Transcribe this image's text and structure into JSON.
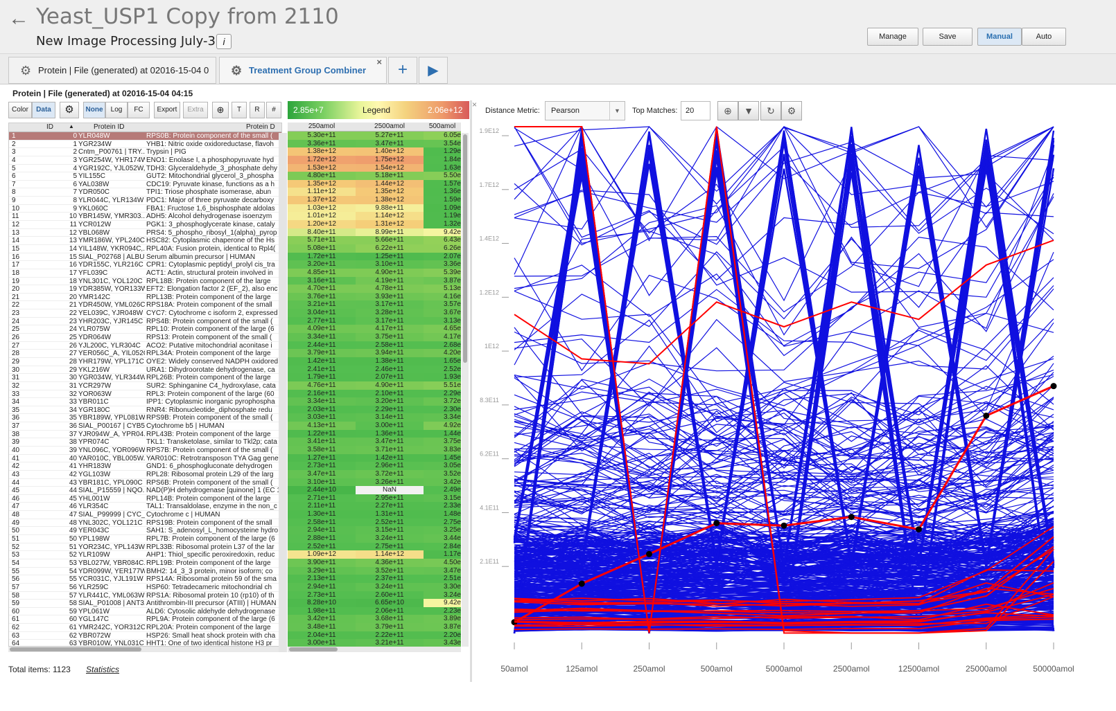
{
  "header": {
    "title": "Yeast_USP1 Copy from 2110",
    "subtitle": "New Image Processing July-30",
    "info": "i",
    "buttons": [
      "Manage",
      "Save",
      "Manual",
      "Auto"
    ]
  },
  "tabs": [
    {
      "label": "Protein | File (generated) at 02016-15-04 0"
    },
    {
      "label": "Treatment Group Combiner",
      "close": "×"
    }
  ],
  "panel_title": "Protein | File (generated) at 02016-15-04 04:15",
  "toolbar": {
    "color": "Color",
    "data": "Data",
    "none": "None",
    "log": "Log",
    "fc": "FC",
    "export": "Export",
    "extra": "Extra",
    "t": "T",
    "r": "R",
    "hash": "#"
  },
  "legend": {
    "min": "2.85e+7",
    "label": "Legend",
    "max": "2.06e+12",
    "colors": {
      "low": "#2ca53c",
      "mid": "#fff8b0",
      "high": "#d85a5a"
    }
  },
  "table": {
    "headers": [
      "ID",
      "Protein ID",
      "Protein D"
    ],
    "sort_arrow": "▲",
    "rows": [
      [
        "1",
        "0",
        "YLR048W",
        "RPS0B: Protein component of the small ("
      ],
      [
        "2",
        "1",
        "YGR234W",
        "YHB1: Nitric oxide oxidoreductase, flavoh"
      ],
      [
        "3",
        "2",
        "Cntm_P00761 | TRY...",
        "Trypsin | PIG"
      ],
      [
        "4",
        "3",
        "YGR254W, YHR174W",
        "ENO1: Enolase I, a phosphopyruvate hyd"
      ],
      [
        "5",
        "4",
        "YGR192C, YJL052W,...",
        "TDH3: Glyceraldehyde_3_phosphate dehy"
      ],
      [
        "6",
        "5",
        "YIL155C",
        "GUT2: Mitochondrial glycerol_3_phospha"
      ],
      [
        "7",
        "6",
        "YAL038W",
        "CDC19: Pyruvate kinase, functions as a h"
      ],
      [
        "8",
        "7",
        "YDR050C",
        "TPI1: Triose phosphate isomerase, abun"
      ],
      [
        "9",
        "8",
        "YLR044C, YLR134W",
        "PDC1: Major of three pyruvate decarboxy"
      ],
      [
        "10",
        "9",
        "YKL060C",
        "FBA1: Fructose 1,6_bisphosphate aldolas"
      ],
      [
        "11",
        "10",
        "YBR145W, YMR303...",
        "ADH5: Alcohol dehydrogenase isoenzym"
      ],
      [
        "12",
        "11",
        "YCR012W",
        "PGK1: 3_phosphoglycerate kinase, cataly"
      ],
      [
        "13",
        "12",
        "YBL068W",
        "PRS4: 5_phospho_ribosyl_1(alpha)_pyrop"
      ],
      [
        "14",
        "13",
        "YMR186W, YPL240C",
        "HSC82: Cytoplasmic chaperone of the Hs"
      ],
      [
        "15",
        "14",
        "YIL148W, YKR094C,...",
        "RPL40A: Fusion protein, identical to Rpl4("
      ],
      [
        "16",
        "15",
        "SIAL_P02768 | ALBU...",
        "Serum albumin precursor | HUMAN"
      ],
      [
        "17",
        "16",
        "YDR155C, YLR216C",
        "CPR1: Cytoplasmic peptidyl_prolyl cis_tra"
      ],
      [
        "18",
        "17",
        "YFL039C",
        "ACT1: Actin, structural protein involved in"
      ],
      [
        "19",
        "18",
        "YNL301C, YOL120C",
        "RPL18B: Protein component of the large"
      ],
      [
        "20",
        "19",
        "YDR385W, YOR133W",
        "EFT2: Elongation factor 2 (EF_2), also enc"
      ],
      [
        "21",
        "20",
        "YMR142C",
        "RPL13B: Protein component of the large"
      ],
      [
        "22",
        "21",
        "YDR450W, YML026C",
        "RPS18A: Protein component of the small"
      ],
      [
        "23",
        "22",
        "YEL039C, YJR048W",
        "CYC7: Cytochrome c isoform 2, expressed"
      ],
      [
        "24",
        "23",
        "YHR203C, YJR145C",
        "RPS4B: Protein component of the small ("
      ],
      [
        "25",
        "24",
        "YLR075W",
        "RPL10: Protein component of the large (6"
      ],
      [
        "26",
        "25",
        "YDR064W",
        "RPS13: Protein component of the small ("
      ],
      [
        "27",
        "26",
        "YJL200C, YLR304C",
        "ACO2: Putative mitochondrial aconitase i"
      ],
      [
        "28",
        "27",
        "YER056C_A, YIL052C",
        "RPL34A: Protein component of the large"
      ],
      [
        "29",
        "28",
        "YHR179W, YPL171C",
        "OYE2: Widely conserved NADPH oxidored"
      ],
      [
        "30",
        "29",
        "YKL216W",
        "URA1: Dihydroorotate dehydrogenase, ca"
      ],
      [
        "31",
        "30",
        "YGR034W, YLR344W",
        "RPL26B: Protein component of the large"
      ],
      [
        "32",
        "31",
        "YCR297W",
        "SUR2: Sphinganine C4_hydroxylase, cata"
      ],
      [
        "33",
        "32",
        "YOR063W",
        "RPL3: Protein component of the large (60"
      ],
      [
        "34",
        "33",
        "YBR011C",
        "IPP1: Cytoplasmic inorganic pyrophospha"
      ],
      [
        "35",
        "34",
        "YGR180C",
        "RNR4: Ribonucleotide_diphosphate redu"
      ],
      [
        "36",
        "35",
        "YBR189W, YPL081W",
        "RPS9B: Protein component of the small ("
      ],
      [
        "37",
        "36",
        "SIAL_P00167 | CYB5...",
        "Cytochrome b5 | HUMAN"
      ],
      [
        "38",
        "37",
        "YJR094W_A, YPR04...",
        "RPL43B: Protein component of the large"
      ],
      [
        "39",
        "38",
        "YPR074C",
        "TKL1: Transketolase, similar to Tkl2p; cata"
      ],
      [
        "40",
        "39",
        "YNL096C, YOR096W",
        "RPS7B: Protein component of the small ("
      ],
      [
        "41",
        "40",
        "YAR010C, YBL005W...",
        "YAR010C: Retrotransposon TYA Gag gene"
      ],
      [
        "42",
        "41",
        "YHR183W",
        "GND1: 6_phosphogluconate dehydrogen"
      ],
      [
        "43",
        "42",
        "YGL103W",
        "RPL28: Ribosomal protein L29 of the larg"
      ],
      [
        "44",
        "43",
        "YBR181C, YPL090C",
        "RPS6B: Protein component of the small ("
      ],
      [
        "45",
        "44",
        "SIAL_P15559 | NQO...",
        "NAD(P)H dehydrogenase [quinone] 1 (EC 1"
      ],
      [
        "46",
        "45",
        "YHL001W",
        "RPL14B: Protein component of the large"
      ],
      [
        "47",
        "46",
        "YLR354C",
        "TAL1: Transaldolase, enzyme in the non_c"
      ],
      [
        "48",
        "47",
        "SIAL_P99999 | CYC_...",
        "Cytochrome c | HUMAN"
      ],
      [
        "49",
        "48",
        "YNL302C, YOL121C",
        "RPS19B: Protein component of the small"
      ],
      [
        "50",
        "49",
        "YER043C",
        "SAH1: S_adenosyl_L_homocysteine hydro"
      ],
      [
        "51",
        "50",
        "YPL198W",
        "RPL7B: Protein component of the large (6"
      ],
      [
        "52",
        "51",
        "YOR234C, YPL143W",
        "RPL33B: Ribosomal protein L37 of the lar"
      ],
      [
        "53",
        "52",
        "YLR109W",
        "AHP1: Thiol_specific peroxiredoxin, reduc"
      ],
      [
        "54",
        "53",
        "YBL027W, YBR084C...",
        "RPL19B: Protein component of the large"
      ],
      [
        "55",
        "54",
        "YDR099W, YER177W",
        "BMH2: 14_3_3 protein, minor isoform; co"
      ],
      [
        "56",
        "55",
        "YCR031C, YJL191W",
        "RPS14A: Ribosomal protein 59 of the sma"
      ],
      [
        "57",
        "56",
        "YLR259C",
        "HSP60: Tetradecameric mitochondrial ch"
      ],
      [
        "58",
        "57",
        "YLR441C, YML063W",
        "RPS1A: Ribosomal protein 10 (rp10) of th"
      ],
      [
        "59",
        "58",
        "SIAL_P01008 | ANT3...",
        "Antithrombin-III precursor (ATIII) | HUMAN"
      ],
      [
        "60",
        "59",
        "YPL061W",
        "ALD6: Cytosolic aldehyde dehydrogenase"
      ],
      [
        "61",
        "60",
        "YGL147C",
        "RPL9A: Protein component of the large (6"
      ],
      [
        "62",
        "61",
        "YMR242C, YOR312C",
        "RPL20A: Protein component of the large"
      ],
      [
        "63",
        "62",
        "YBR072W",
        "HSP26: Small heat shock protein with cha"
      ],
      [
        "64",
        "63",
        "YBR010W, YNL031C",
        "HHT1: One of two identical histone H3 pr"
      ]
    ]
  },
  "heatmap": {
    "headers": [
      "250amol",
      "2500amol",
      "500amol"
    ],
    "rows": [
      [
        "5.30e+11",
        "5.27e+11",
        "6.05e"
      ],
      [
        "3.36e+11",
        "3.47e+11",
        "3.54e"
      ],
      [
        "1.38e+12",
        "1.40e+12",
        "1.29e"
      ],
      [
        "1.72e+12",
        "1.75e+12",
        "1.84e"
      ],
      [
        "1.53e+12",
        "1.54e+12",
        "1.63e"
      ],
      [
        "4.80e+11",
        "5.18e+11",
        "5.50e"
      ],
      [
        "1.35e+12",
        "1.44e+12",
        "1.57e"
      ],
      [
        "1.11e+12",
        "1.35e+12",
        "1.36e"
      ],
      [
        "1.37e+12",
        "1.38e+12",
        "1.59e"
      ],
      [
        "1.03e+12",
        "9.88e+11",
        "1.09e"
      ],
      [
        "1.01e+12",
        "1.14e+12",
        "1.19e"
      ],
      [
        "1.20e+12",
        "1.31e+12",
        "1.32e"
      ],
      [
        "8.40e+11",
        "8.99e+11",
        "9.42e"
      ],
      [
        "5.71e+11",
        "5.66e+11",
        "6.43e"
      ],
      [
        "5.08e+11",
        "6.22e+11",
        "6.26e"
      ],
      [
        "1.72e+11",
        "1.25e+11",
        "2.07e"
      ],
      [
        "3.20e+11",
        "3.10e+11",
        "3.36e"
      ],
      [
        "4.85e+11",
        "4.90e+11",
        "5.39e"
      ],
      [
        "3.16e+11",
        "4.19e+11",
        "3.87e"
      ],
      [
        "4.70e+11",
        "4.78e+11",
        "5.13e"
      ],
      [
        "3.76e+11",
        "3.93e+11",
        "4.16e"
      ],
      [
        "3.21e+11",
        "3.17e+11",
        "3.57e"
      ],
      [
        "3.04e+11",
        "3.28e+11",
        "3.67e"
      ],
      [
        "2.77e+11",
        "3.17e+11",
        "3.13e"
      ],
      [
        "4.09e+11",
        "4.17e+11",
        "4.65e"
      ],
      [
        "3.34e+11",
        "3.75e+11",
        "4.17e"
      ],
      [
        "2.44e+11",
        "2.58e+11",
        "2.68e"
      ],
      [
        "3.79e+11",
        "3.94e+11",
        "4.20e"
      ],
      [
        "1.42e+11",
        "1.38e+11",
        "1.65e"
      ],
      [
        "2.41e+11",
        "2.46e+11",
        "2.52e"
      ],
      [
        "1.79e+11",
        "2.07e+11",
        "1.93e"
      ],
      [
        "4.76e+11",
        "4.90e+11",
        "5.51e"
      ],
      [
        "2.16e+11",
        "2.10e+11",
        "2.29e"
      ],
      [
        "3.34e+11",
        "3.20e+11",
        "3.72e"
      ],
      [
        "2.03e+11",
        "2.29e+11",
        "2.30e"
      ],
      [
        "3.03e+11",
        "3.14e+11",
        "3.34e"
      ],
      [
        "4.13e+11",
        "3.00e+11",
        "4.92e"
      ],
      [
        "1.22e+11",
        "1.36e+11",
        "1.44e"
      ],
      [
        "3.41e+11",
        "3.47e+11",
        "3.75e"
      ],
      [
        "3.58e+11",
        "3.71e+11",
        "3.83e"
      ],
      [
        "1.27e+11",
        "1.42e+11",
        "1.45e"
      ],
      [
        "2.73e+11",
        "2.96e+11",
        "3.05e"
      ],
      [
        "3.47e+11",
        "3.72e+11",
        "3.52e"
      ],
      [
        "3.10e+11",
        "3.26e+11",
        "3.42e"
      ],
      [
        "2.44e+10",
        "NaN",
        "2.49e"
      ],
      [
        "2.71e+11",
        "2.95e+11",
        "3.15e"
      ],
      [
        "2.11e+11",
        "2.27e+11",
        "2.33e"
      ],
      [
        "1.30e+11",
        "1.31e+11",
        "1.48e"
      ],
      [
        "2.58e+11",
        "2.52e+11",
        "2.75e"
      ],
      [
        "2.94e+11",
        "3.15e+11",
        "3.25e"
      ],
      [
        "2.88e+11",
        "3.24e+11",
        "3.44e"
      ],
      [
        "2.52e+11",
        "2.75e+11",
        "2.84e"
      ],
      [
        "1.09e+12",
        "1.14e+12",
        "1.17e"
      ],
      [
        "3.90e+11",
        "4.36e+11",
        "4.50e"
      ],
      [
        "3.29e+11",
        "3.52e+11",
        "3.47e"
      ],
      [
        "2.13e+11",
        "2.37e+11",
        "2.51e"
      ],
      [
        "2.94e+11",
        "3.24e+11",
        "3.30e"
      ],
      [
        "2.73e+11",
        "2.60e+11",
        "3.24e"
      ],
      [
        "8.28e+10",
        "6.65e+10",
        "9.42e"
      ],
      [
        "1.98e+11",
        "2.06e+11",
        "2.23e"
      ],
      [
        "3.42e+11",
        "3.68e+11",
        "3.89e"
      ],
      [
        "3.48e+11",
        "3.79e+11",
        "3.87e"
      ],
      [
        "2.04e+11",
        "2.22e+11",
        "2.20e"
      ],
      [
        "3.00e+11",
        "3.21e+11",
        "3.43e"
      ]
    ]
  },
  "footer": {
    "total": "Total items: 1123",
    "statistics": "Statistics"
  },
  "controls": {
    "distance_label": "Distance Metric:",
    "distance_value": "Pearson",
    "top_label": "Top Matches:",
    "top_value": "20"
  },
  "chart_data": {
    "type": "line",
    "title": "",
    "x": [
      "50amol",
      "125amol",
      "250amol",
      "500amol",
      "5000amol",
      "2500amol",
      "12500amol",
      "25000amol",
      "50000amol"
    ],
    "y_ticks": [
      "2.1E11",
      "4.1E11",
      "6.2E11",
      "8.3E11",
      "1E12",
      "1.2E12",
      "1.4E12",
      "1.7E12",
      "1.9E12"
    ],
    "ylim": [
      0,
      2060000000000.0
    ],
    "series": [
      {
        "name": "selected",
        "color": "#ff0000",
        "values": [
          54000000000.0,
          210000000000.0,
          330000000000.0,
          455000000000.0,
          445000000000.0,
          480000000000.0,
          430000000000.0,
          890000000000.0,
          1010000000000.0
        ]
      },
      {
        "name": "match",
        "color": "#ff0000",
        "values": [
          1300000000000.0,
          1120000000000.0,
          1100000000000.0,
          1350000000000.0,
          1250000000000.0,
          1350000000000.0,
          1280000000000.0,
          1500000000000.0,
          1600000000000.0
        ]
      },
      {
        "name": "match",
        "color": "#ff0000",
        "values": [
          2060000000000.0,
          2060000000000.0,
          10000000000.0,
          2060000000000.0,
          20000000000.0,
          10000000000.0,
          10000000000.0,
          30000000000.0,
          350000000000.0
        ]
      },
      {
        "name": "match",
        "color": "#ff0000",
        "values": [
          2060000000000.0,
          2060000000000.0,
          10000000000.0,
          2060000000000.0,
          10000000000.0,
          10000000000.0,
          10000000000.0,
          20000000000.0,
          300000000000.0
        ]
      },
      {
        "name": "match",
        "color": "#ff0000",
        "values": [
          150000000000.0,
          140000000000.0,
          150000000000.0,
          130000000000.0,
          120000000000.0,
          130000000000.0,
          140000000000.0,
          180000000000.0,
          400000000000.0
        ]
      },
      {
        "name": "match",
        "color": "#ff0000",
        "values": [
          100000000000.0,
          110000000000.0,
          100000000000.0,
          90000000000.0,
          80000000000.0,
          90000000000.0,
          100000000000.0,
          160000000000.0,
          360000000000.0
        ]
      }
    ]
  }
}
